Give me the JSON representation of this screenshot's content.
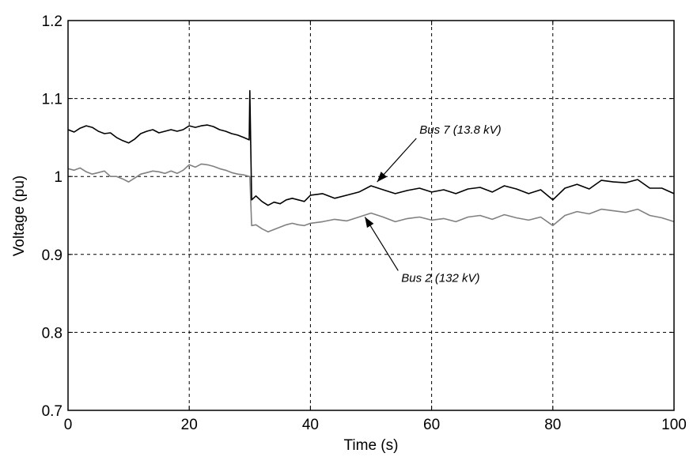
{
  "chart_data": {
    "type": "line",
    "xlabel": "Time (s)",
    "ylabel": "Voltage (pu)",
    "xlim": [
      0,
      100
    ],
    "ylim": [
      0.7,
      1.2
    ],
    "xticks": [
      0,
      20,
      40,
      60,
      80,
      100
    ],
    "yticks": [
      0.7,
      0.8,
      0.9,
      1.0,
      1.1,
      1.2
    ],
    "xtick_labels": [
      "0",
      "20",
      "40",
      "60",
      "80",
      "100"
    ],
    "ytick_labels": [
      "0.7",
      "0.8",
      "0.9",
      "1",
      "1.1",
      "1.2"
    ],
    "grid": true,
    "series": [
      {
        "name": "Bus 7 (13.8 kV)",
        "color": "#000000",
        "x": [
          0,
          1,
          2,
          3,
          4,
          5,
          6,
          7,
          8,
          9,
          10,
          11,
          12,
          13,
          14,
          15,
          16,
          17,
          18,
          19,
          20,
          21,
          22,
          23,
          24,
          25,
          26,
          27,
          28,
          29,
          29.9,
          30,
          30.3,
          31,
          32,
          33,
          34,
          35,
          36,
          37,
          38,
          39,
          40,
          42,
          44,
          46,
          48,
          50,
          52,
          54,
          56,
          58,
          60,
          62,
          64,
          66,
          68,
          70,
          72,
          74,
          76,
          78,
          80,
          82,
          84,
          86,
          88,
          90,
          92,
          94,
          96,
          98,
          100
        ],
        "y": [
          1.06,
          1.057,
          1.062,
          1.065,
          1.063,
          1.058,
          1.055,
          1.056,
          1.05,
          1.046,
          1.043,
          1.048,
          1.055,
          1.058,
          1.06,
          1.056,
          1.058,
          1.06,
          1.058,
          1.06,
          1.065,
          1.063,
          1.065,
          1.066,
          1.064,
          1.06,
          1.058,
          1.055,
          1.053,
          1.05,
          1.047,
          1.11,
          0.97,
          0.975,
          0.968,
          0.963,
          0.967,
          0.965,
          0.97,
          0.972,
          0.97,
          0.968,
          0.976,
          0.978,
          0.972,
          0.976,
          0.98,
          0.988,
          0.983,
          0.978,
          0.982,
          0.985,
          0.98,
          0.983,
          0.978,
          0.984,
          0.986,
          0.98,
          0.988,
          0.984,
          0.978,
          0.983,
          0.97,
          0.985,
          0.99,
          0.984,
          0.995,
          0.993,
          0.992,
          0.996,
          0.985,
          0.985,
          0.978
        ]
      },
      {
        "name": "Bus 2 (132 kV)",
        "color": "#808080",
        "x": [
          0,
          1,
          2,
          3,
          4,
          5,
          6,
          7,
          8,
          9,
          10,
          11,
          12,
          13,
          14,
          15,
          16,
          17,
          18,
          19,
          20,
          21,
          22,
          23,
          24,
          25,
          26,
          27,
          28,
          29,
          29.9,
          30,
          30.3,
          31,
          32,
          33,
          34,
          35,
          36,
          37,
          38,
          39,
          40,
          42,
          44,
          46,
          48,
          50,
          52,
          54,
          56,
          58,
          60,
          62,
          64,
          66,
          68,
          70,
          72,
          74,
          76,
          78,
          80,
          82,
          84,
          86,
          88,
          90,
          92,
          94,
          96,
          98,
          100
        ],
        "y": [
          1.01,
          1.008,
          1.011,
          1.006,
          1.003,
          1.005,
          1.007,
          1.0,
          1.0,
          0.997,
          0.993,
          0.998,
          1.003,
          1.005,
          1.007,
          1.006,
          1.004,
          1.007,
          1.004,
          1.008,
          1.015,
          1.012,
          1.016,
          1.015,
          1.013,
          1.01,
          1.008,
          1.005,
          1.003,
          1.002,
          1.0,
          1.0,
          0.937,
          0.938,
          0.933,
          0.929,
          0.932,
          0.935,
          0.938,
          0.94,
          0.938,
          0.937,
          0.94,
          0.942,
          0.945,
          0.943,
          0.948,
          0.953,
          0.948,
          0.942,
          0.946,
          0.948,
          0.944,
          0.946,
          0.942,
          0.948,
          0.95,
          0.945,
          0.951,
          0.947,
          0.944,
          0.948,
          0.937,
          0.95,
          0.955,
          0.952,
          0.958,
          0.956,
          0.954,
          0.958,
          0.95,
          0.947,
          0.942
        ]
      }
    ],
    "annotations": [
      {
        "text": "Bus 7 (13.8 kV)",
        "text_at": [
          58,
          1.055
        ],
        "arrow_to": [
          51,
          0.993
        ]
      },
      {
        "text": "Bus 2 (132 kV)",
        "text_at": [
          55,
          0.865
        ],
        "arrow_to": [
          49,
          0.948
        ]
      }
    ]
  }
}
